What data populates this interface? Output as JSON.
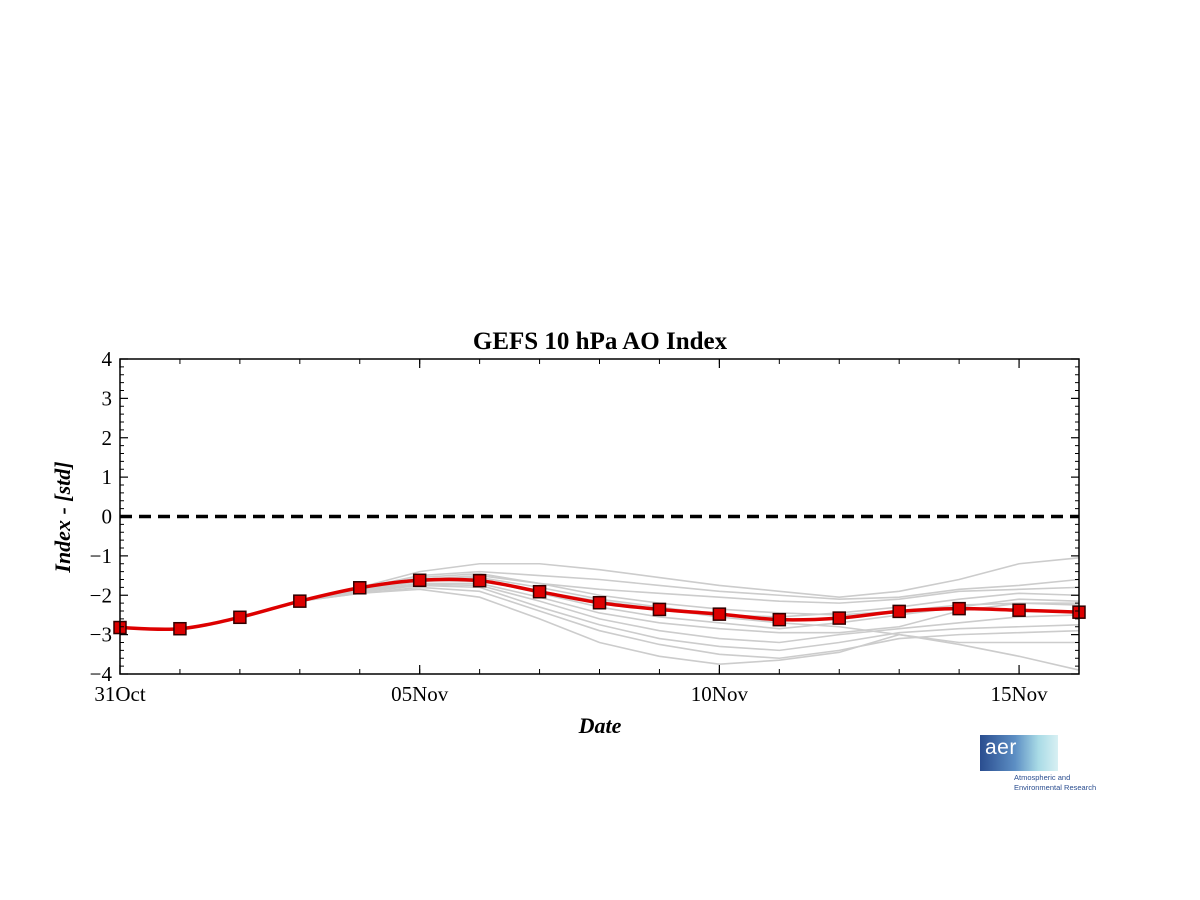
{
  "chart_data": {
    "type": "line",
    "title": "GEFS 10 hPa AO Index",
    "xlabel": "Date",
    "ylabel": "Index - [std]",
    "ylim": [
      -4,
      4
    ],
    "yticks": [
      4,
      3,
      2,
      1,
      0,
      -1,
      -2,
      -3,
      -4
    ],
    "x_start": "2019-10-31",
    "x_end": "2019-11-16",
    "xtick_labels": [
      {
        "date": "2019-10-31",
        "label": "31Oct"
      },
      {
        "date": "2019-11-05",
        "label": "05Nov"
      },
      {
        "date": "2019-11-10",
        "label": "10Nov"
      },
      {
        "date": "2019-11-15",
        "label": "15Nov"
      }
    ],
    "grid": false,
    "zero_line": {
      "y": 0,
      "style": "dashed",
      "color": "#000000"
    },
    "series": [
      {
        "role": "ensemble-mean",
        "color": "#dd0000",
        "marker": "square",
        "points": [
          [
            "2019-10-31",
            -2.82
          ],
          [
            "2019-11-01",
            -2.85
          ],
          [
            "2019-11-02",
            -2.56
          ],
          [
            "2019-11-03",
            -2.15
          ],
          [
            "2019-11-04",
            -1.81
          ],
          [
            "2019-11-05",
            -1.62
          ],
          [
            "2019-11-06",
            -1.63
          ],
          [
            "2019-11-07",
            -1.91
          ],
          [
            "2019-11-08",
            -2.19
          ],
          [
            "2019-11-09",
            -2.36
          ],
          [
            "2019-11-10",
            -2.48
          ],
          [
            "2019-11-11",
            -2.62
          ],
          [
            "2019-11-12",
            -2.58
          ],
          [
            "2019-11-13",
            -2.41
          ],
          [
            "2019-11-14",
            -2.34
          ],
          [
            "2019-11-15",
            -2.38
          ],
          [
            "2019-11-16",
            -2.43
          ]
        ]
      }
    ],
    "members": {
      "role": "ensemble-members",
      "color": "#cccccc",
      "dates": [
        "2019-11-03",
        "2019-11-04",
        "2019-11-05",
        "2019-11-06",
        "2019-11-07",
        "2019-11-08",
        "2019-11-09",
        "2019-11-10",
        "2019-11-11",
        "2019-11-12",
        "2019-11-13",
        "2019-11-14",
        "2019-11-15",
        "2019-11-16"
      ],
      "values": [
        [
          -2.15,
          -1.8,
          -1.4,
          -1.2,
          -1.2,
          -1.35,
          -1.55,
          -1.75,
          -1.9,
          -2.05,
          -1.9,
          -1.6,
          -1.2,
          -1.05
        ],
        [
          -2.15,
          -1.82,
          -1.5,
          -1.4,
          -1.5,
          -1.6,
          -1.75,
          -1.9,
          -2.0,
          -2.1,
          -2.05,
          -1.85,
          -1.75,
          -1.6
        ],
        [
          -2.15,
          -1.85,
          -1.55,
          -1.45,
          -1.7,
          -1.85,
          -1.95,
          -2.05,
          -2.15,
          -2.2,
          -2.1,
          -1.9,
          -1.85,
          -1.8
        ],
        [
          -2.15,
          -1.85,
          -1.6,
          -1.55,
          -1.8,
          -2.1,
          -2.3,
          -2.5,
          -2.55,
          -2.45,
          -2.3,
          -2.1,
          -1.95,
          -2.0
        ],
        [
          -2.15,
          -1.88,
          -1.65,
          -1.6,
          -1.95,
          -2.3,
          -2.55,
          -2.7,
          -2.85,
          -2.7,
          -2.5,
          -2.3,
          -2.1,
          -2.15
        ],
        [
          -2.15,
          -1.9,
          -1.7,
          -1.7,
          -2.05,
          -2.45,
          -2.7,
          -2.85,
          -2.95,
          -2.95,
          -2.8,
          -2.4,
          -2.2,
          -2.25
        ],
        [
          -2.15,
          -1.9,
          -1.72,
          -1.75,
          -2.15,
          -2.6,
          -2.9,
          -3.1,
          -3.2,
          -3.0,
          -2.85,
          -2.7,
          -2.55,
          -2.5
        ],
        [
          -2.15,
          -1.92,
          -1.75,
          -1.8,
          -2.3,
          -2.75,
          -3.1,
          -3.3,
          -3.4,
          -3.2,
          -2.95,
          -2.85,
          -2.8,
          -2.75
        ],
        [
          -2.15,
          -1.95,
          -1.8,
          -1.9,
          -2.4,
          -2.9,
          -3.25,
          -3.5,
          -3.6,
          -3.4,
          -3.1,
          -3.0,
          -2.95,
          -2.9
        ],
        [
          -2.15,
          -1.95,
          -1.85,
          -2.05,
          -2.6,
          -3.2,
          -3.55,
          -3.75,
          -3.65,
          -3.45,
          -3.0,
          -3.25,
          -3.55,
          -3.9
        ],
        [
          -2.15,
          -1.85,
          -1.6,
          -1.5,
          -1.7,
          -2.0,
          -2.2,
          -2.35,
          -2.45,
          -2.5,
          -2.4,
          -2.25,
          -2.2,
          -2.2
        ],
        [
          -2.15,
          -1.87,
          -1.62,
          -1.65,
          -1.9,
          -2.15,
          -2.35,
          -2.55,
          -2.7,
          -2.8,
          -3.0,
          -3.2,
          -3.2,
          -3.2
        ]
      ]
    }
  },
  "logo": {
    "word": "aer",
    "line1": "Atmospheric and",
    "line2": "Environmental Research"
  }
}
